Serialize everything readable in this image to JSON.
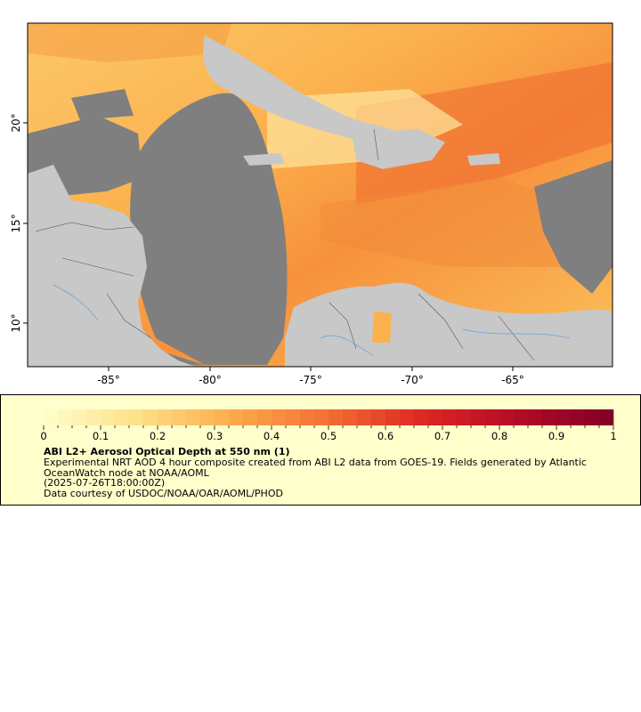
{
  "map": {
    "lon_ticks": [
      "-85°",
      "-80°",
      "-75°",
      "-70°",
      "-65°"
    ],
    "lat_ticks": [
      "20°",
      "15°",
      "10°"
    ]
  },
  "legend": {
    "title": "ABI L2+ Aerosol Optical Depth at 550 nm (1)",
    "description": "Experimental NRT AOD 4 hour composite created from ABI L2 data from GOES-19. Fields generated by Atlantic OceanWatch node at NOAA/AOML",
    "timestamp": "(2025-07-26T18:00:00Z)",
    "credit": "Data courtesy of USDOC/NOAA/OAR/AOML/PHOD",
    "scale_labels": [
      "0",
      "0.1",
      "0.2",
      "0.3",
      "0.4",
      "0.5",
      "0.6",
      "0.7",
      "0.8",
      "0.9",
      "1"
    ]
  },
  "colors": {
    "land": "#c8c8c8",
    "no_data": "#7f7f7f",
    "colormap": [
      "#ffffcc",
      "#fee087",
      "#fdab4b",
      "#f36e33",
      "#dc2623",
      "#b30b26",
      "#800026"
    ]
  }
}
